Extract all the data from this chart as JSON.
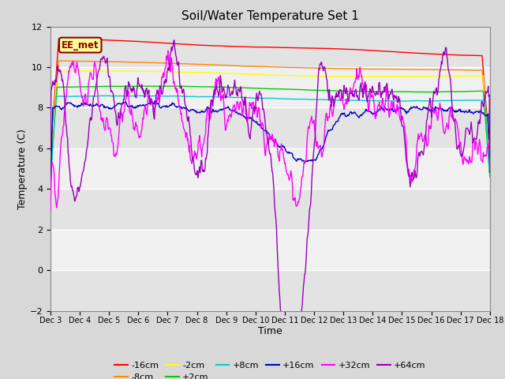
{
  "title": "Soil/Water Temperature Set 1",
  "xlabel": "Time",
  "ylabel": "Temperature (C)",
  "ylim": [
    -2,
    12
  ],
  "yticks": [
    -2,
    0,
    2,
    4,
    6,
    8,
    10,
    12
  ],
  "x_tick_labels": [
    "Dec 3",
    "Dec 4",
    "Dec 5",
    "Dec 6",
    "Dec 7",
    "Dec 8",
    "Dec 9",
    "Dec 10",
    "Dec 11",
    "Dec 12",
    "Dec 13",
    "Dec 14",
    "Dec 15",
    "Dec 16",
    "Dec 17",
    "Dec 18"
  ],
  "annotation_text": "EE_met",
  "annotation_color": "#8B0000",
  "annotation_bg": "#FFFF99",
  "series_colors": {
    "-16cm": "#FF0000",
    "-8cm": "#FF8800",
    "-2cm": "#FFFF00",
    "+2cm": "#00CC00",
    "+8cm": "#00CCCC",
    "+16cm": "#0000BB",
    "+32cm": "#FF00FF",
    "+64cm": "#9900BB"
  },
  "bg_color": "#D8D8D8",
  "plot_bg": "#F0F0F0",
  "grid_color": "#FFFFFF",
  "legend_order": [
    "-16cm",
    "-8cm",
    "-2cm",
    "+2cm",
    "+8cm",
    "+16cm",
    "+32cm",
    "+64cm"
  ]
}
